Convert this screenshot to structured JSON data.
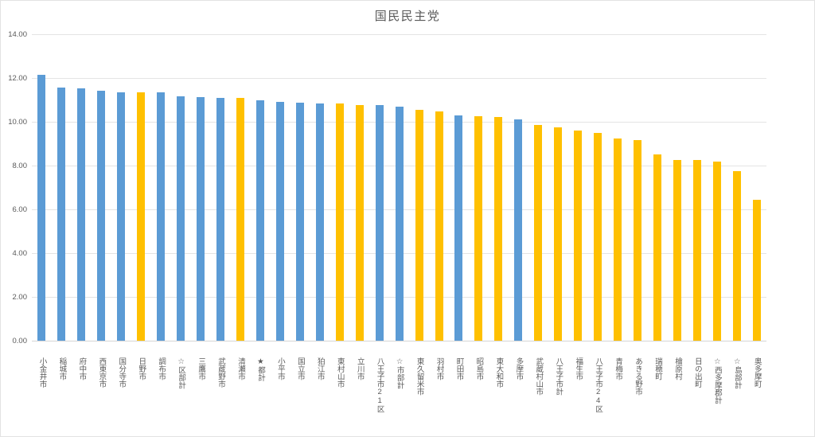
{
  "chart_data": {
    "type": "bar",
    "title": "国民民主党",
    "xlabel": "",
    "ylabel": "",
    "ylim": [
      0,
      14
    ],
    "ytick_step": 2,
    "ytick_labels": [
      "14.00",
      "12.00",
      "10.00",
      "8.00",
      "6.00",
      "4.00",
      "2.00",
      "0.00"
    ],
    "grid": true,
    "legend_position": "none",
    "categories": [
      "小金井市",
      "稲城市",
      "府中市",
      "西東京市",
      "国分寺市",
      "日野市",
      "調布市",
      "☆区部計",
      "三鷹市",
      "武蔵野市",
      "清瀬市",
      "★都計",
      "小平市",
      "国立市",
      "狛江市",
      "東村山市",
      "立川市",
      "八王子市21区",
      "☆市部計",
      "東久留米市",
      "羽村市",
      "町田市",
      "昭島市",
      "東大和市",
      "多摩市",
      "武蔵村山市",
      "八王子市計",
      "福生市",
      "八王子市24区",
      "青梅市",
      "あきる野市",
      "瑞穂町",
      "檜原村",
      "日の出町",
      "☆西多摩郡計",
      "☆島部計",
      "奥多摩町"
    ],
    "values": [
      12.13,
      11.55,
      11.52,
      11.41,
      11.36,
      11.35,
      11.33,
      11.15,
      11.12,
      11.09,
      11.08,
      10.99,
      10.91,
      10.87,
      10.85,
      10.84,
      10.76,
      10.75,
      10.7,
      10.56,
      10.46,
      10.28,
      10.27,
      10.22,
      10.1,
      9.86,
      9.74,
      9.62,
      9.49,
      9.23,
      9.17,
      8.5,
      8.27,
      8.24,
      8.2,
      7.76,
      6.43
    ],
    "bar_colors": [
      "blue",
      "blue",
      "blue",
      "blue",
      "blue",
      "gold",
      "blue",
      "blue",
      "blue",
      "blue",
      "gold",
      "blue",
      "blue",
      "blue",
      "blue",
      "gold",
      "gold",
      "blue",
      "blue",
      "gold",
      "gold",
      "blue",
      "gold",
      "gold",
      "blue",
      "gold",
      "gold",
      "gold",
      "gold",
      "gold",
      "gold",
      "gold",
      "gold",
      "gold",
      "gold",
      "gold",
      "gold"
    ],
    "palette": {
      "blue": "#5B9BD5",
      "gold": "#FFC000",
      "grid": "#E4E4E4",
      "axis": "#D6D6D6",
      "text": "#595959",
      "background": "#FFFFFF"
    }
  }
}
